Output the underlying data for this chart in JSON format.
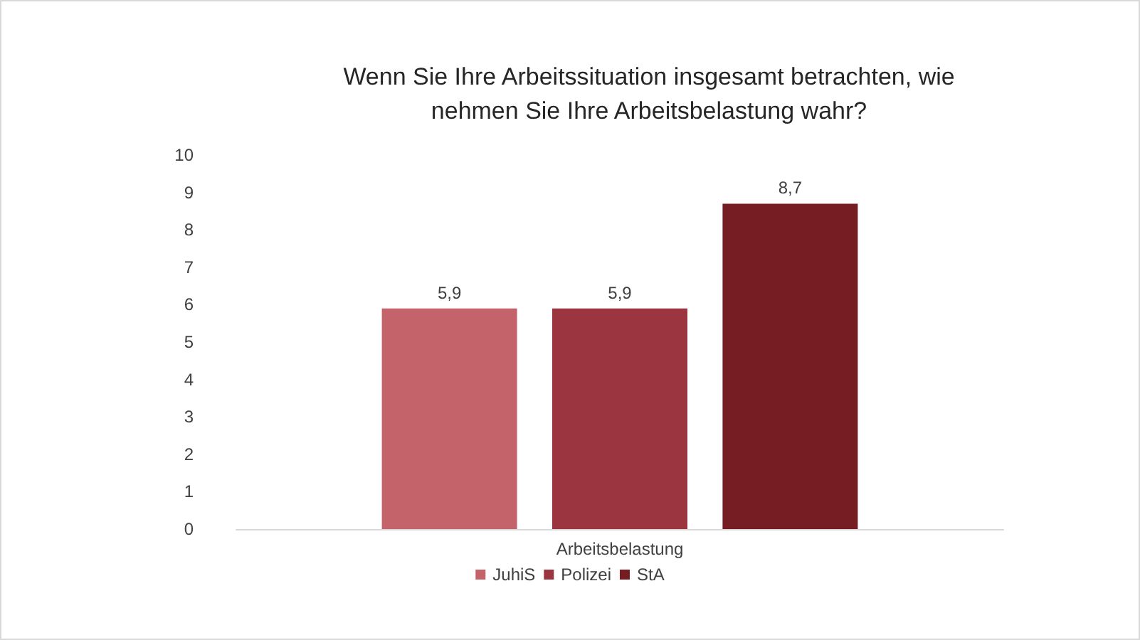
{
  "chart_data": {
    "type": "bar",
    "title": "Wenn Sie Ihre Arbeitssituation insgesamt betrachten, wie\nnehmen Sie Ihre Arbeitsbelastung wahr?",
    "categories": [
      "Arbeitsbelastung"
    ],
    "series": [
      {
        "name": "JuhiS",
        "color": "#c5636a",
        "values": [
          5.9
        ],
        "value_labels": [
          "5,9"
        ]
      },
      {
        "name": "Polizei",
        "color": "#9b3540",
        "values": [
          5.9
        ],
        "value_labels": [
          "5,9"
        ]
      },
      {
        "name": "StA",
        "color": "#761c23",
        "values": [
          8.7
        ],
        "value_labels": [
          "8,7"
        ]
      }
    ],
    "ylim": [
      0,
      10
    ],
    "yticks": [
      0,
      1,
      2,
      3,
      4,
      5,
      6,
      7,
      8,
      9,
      10
    ],
    "grid": false,
    "legend": "bottom"
  }
}
